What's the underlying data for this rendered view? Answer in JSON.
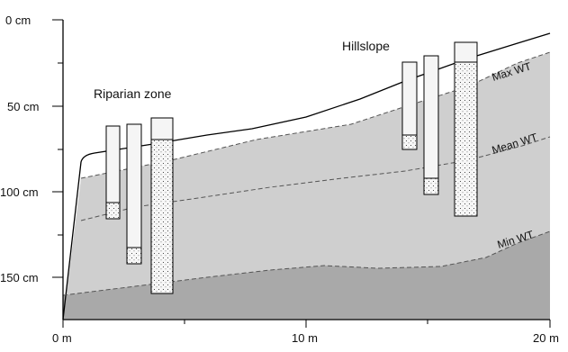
{
  "diagram": {
    "y_axis": {
      "unit": "cm",
      "range": [
        0,
        175
      ],
      "ticks": [
        {
          "value": 0,
          "label": "0 cm"
        },
        {
          "value": 50,
          "label": "50 cm"
        },
        {
          "value": 100,
          "label": "100 cm"
        },
        {
          "value": 150,
          "label": "150 cm"
        }
      ]
    },
    "x_axis": {
      "unit": "m",
      "range": [
        0,
        20
      ],
      "ticks": [
        {
          "value": 0,
          "label": "0 m"
        },
        {
          "value": 10,
          "label": "10 m"
        },
        {
          "value": 20,
          "label": "20 m"
        }
      ]
    },
    "zones": {
      "riparian": "Riparian zone",
      "hillslope": "Hillslope"
    },
    "water_tables": {
      "max": "Max WT",
      "mean": "Mean WT",
      "min": "Min WT"
    },
    "colors": {
      "upper_fill": "#cfcfcf",
      "lower_fill": "#a9a9a9",
      "well_fill": "#f5f5f5",
      "line": "#000000",
      "dashed": "#555555"
    }
  }
}
